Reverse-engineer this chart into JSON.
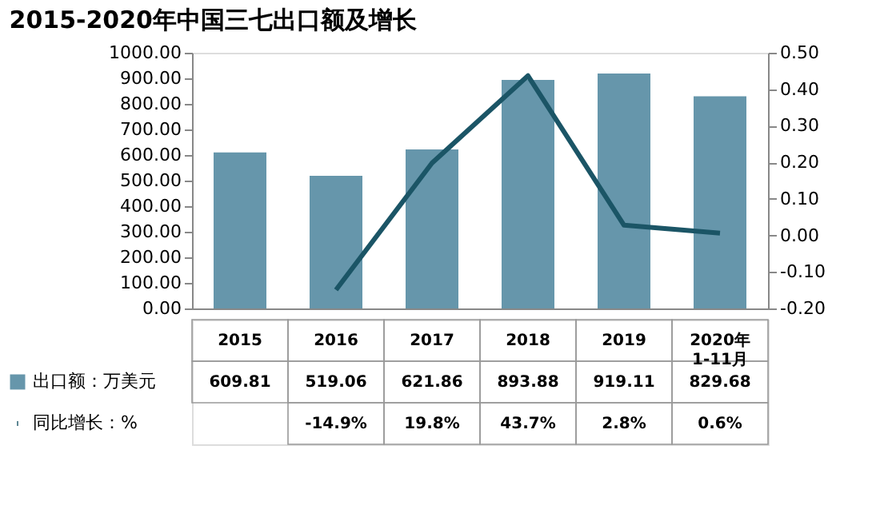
{
  "chart_data": {
    "type": "bar",
    "title": "2015-2020年中国三七出口额及增长",
    "categories": [
      "2015",
      "2016",
      "2017",
      "2018",
      "2019",
      "2020年 1-11月"
    ],
    "series": [
      {
        "name": "出口额：万美元",
        "color": "#6696ab",
        "values": [
          609.81,
          519.06,
          621.86,
          893.88,
          919.11,
          829.68
        ],
        "value_labels": [
          "609.81",
          "519.06",
          "621.86",
          "893.88",
          "919.11",
          "829.68"
        ]
      },
      {
        "name": "同比增长：%",
        "type": "line",
        "axis": "y2",
        "color": "#1b5566",
        "values": [
          null,
          -0.149,
          0.198,
          0.437,
          0.028,
          0.006
        ],
        "value_labels": [
          null,
          "-14.9%",
          "19.8%",
          "43.7%",
          "2.8%",
          "0.6%"
        ]
      }
    ],
    "ylim": [
      0,
      1000
    ],
    "yticks": [
      {
        "value": 0,
        "label": "0.00"
      },
      {
        "value": 100,
        "label": "100.00"
      },
      {
        "value": 200,
        "label": "200.00"
      },
      {
        "value": 300,
        "label": "300.00"
      },
      {
        "value": 400,
        "label": "400.00"
      },
      {
        "value": 500,
        "label": "500.00"
      },
      {
        "value": 600,
        "label": "600.00"
      },
      {
        "value": 700,
        "label": "700.00"
      },
      {
        "value": 800,
        "label": "800.00"
      },
      {
        "value": 900,
        "label": "900.00"
      },
      {
        "value": 1000,
        "label": "1000.00"
      }
    ],
    "y2lim": [
      -0.2,
      0.5
    ],
    "y2ticks": [
      {
        "value": -0.2,
        "label": "-0.20"
      },
      {
        "value": -0.1,
        "label": "-0.10"
      },
      {
        "value": 0,
        "label": "0.00"
      },
      {
        "value": 0.1,
        "label": "0.10"
      },
      {
        "value": 0.2,
        "label": "0.20"
      },
      {
        "value": 0.3,
        "label": "0.30"
      },
      {
        "value": 0.4,
        "label": "0.40"
      },
      {
        "value": 0.5,
        "label": "0.50"
      }
    ],
    "grid": false,
    "legend": "bottom",
    "marker": "none",
    "line_style": "solid"
  }
}
